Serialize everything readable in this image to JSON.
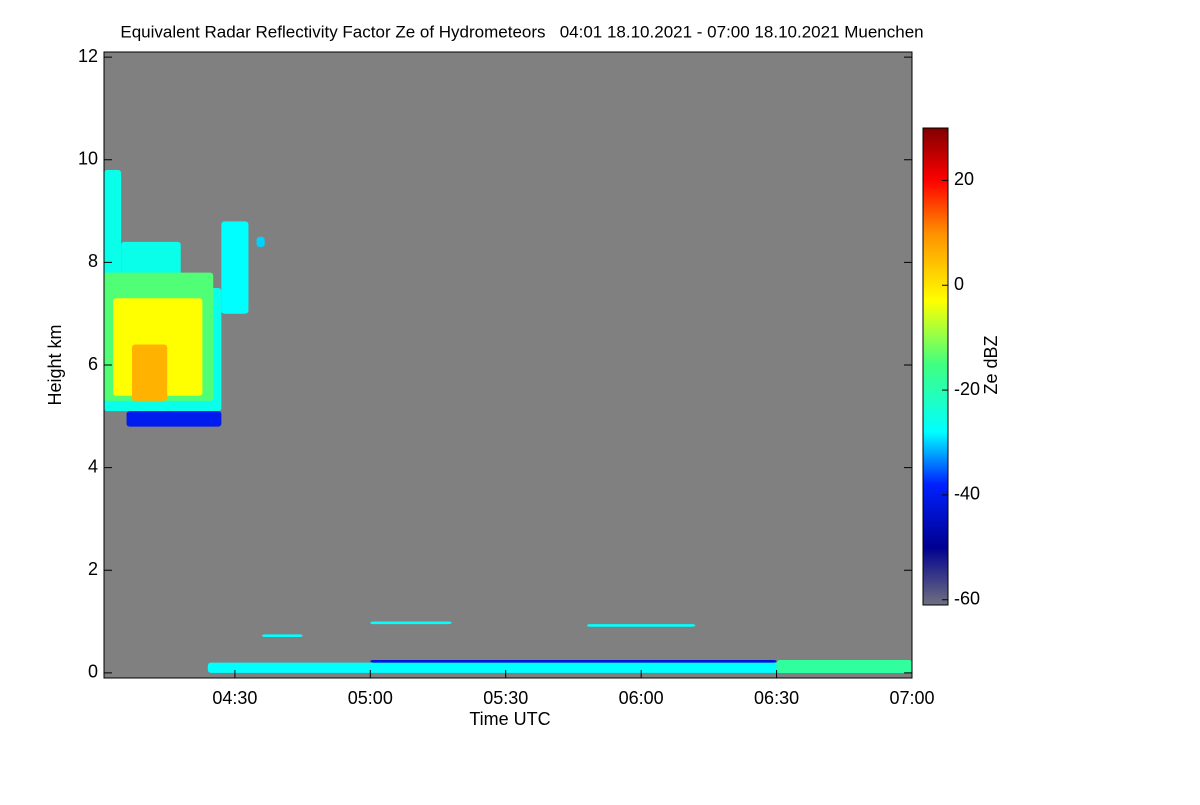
{
  "chart_data": {
    "type": "heatmap",
    "title": "Equivalent Radar Reflectivity Factor Ze of Hydrometeors   04:01 18.10.2021 - 07:00 18.10.2021 Muenchen",
    "x_label": "Time UTC",
    "y_label": "Height km",
    "colorbar_label": "Ze dBZ",
    "xlim": [
      4.0167,
      7.0
    ],
    "xticks": [
      {
        "value": 4.5,
        "label": "04:30"
      },
      {
        "value": 5.0,
        "label": "05:00"
      },
      {
        "value": 5.5,
        "label": "05:30"
      },
      {
        "value": 6.0,
        "label": "06:00"
      },
      {
        "value": 6.5,
        "label": "06:30"
      },
      {
        "value": 7.0,
        "label": "07:00"
      }
    ],
    "ylim": [
      -0.1,
      12.1
    ],
    "yticks": [
      0,
      2,
      4,
      6,
      8,
      10,
      12
    ],
    "clim": [
      -61,
      30
    ],
    "cticks": [
      -60,
      -40,
      -20,
      0,
      20
    ],
    "background": "#808080",
    "colormap": [
      {
        "value": -61,
        "color": "#707080"
      },
      {
        "value": -50,
        "color": "#000090"
      },
      {
        "value": -38,
        "color": "#0020ff"
      },
      {
        "value": -28,
        "color": "#00ffff"
      },
      {
        "value": -15,
        "color": "#40ff80"
      },
      {
        "value": -3,
        "color": "#ffff00"
      },
      {
        "value": 10,
        "color": "#ff9000"
      },
      {
        "value": 20,
        "color": "#ff0000"
      },
      {
        "value": 30,
        "color": "#800000"
      }
    ],
    "echoes": [
      {
        "t": [
          4.017,
          4.45
        ],
        "h": [
          5.1,
          7.5
        ],
        "ze": -26
      },
      {
        "t": [
          4.017,
          4.08
        ],
        "h": [
          7.5,
          9.8
        ],
        "ze": -26
      },
      {
        "t": [
          4.08,
          4.3
        ],
        "h": [
          7.5,
          8.4
        ],
        "ze": -26
      },
      {
        "t": [
          4.1,
          4.45
        ],
        "h": [
          4.8,
          5.1
        ],
        "ze": -40
      },
      {
        "t": [
          4.45,
          4.55
        ],
        "h": [
          7.0,
          8.8
        ],
        "ze": -28
      },
      {
        "t": [
          4.58,
          4.61
        ],
        "h": [
          8.3,
          8.5
        ],
        "ze": -30
      },
      {
        "t": [
          4.017,
          4.42
        ],
        "h": [
          5.3,
          7.8
        ],
        "ze": -14
      },
      {
        "t": [
          4.05,
          4.38
        ],
        "h": [
          5.4,
          7.3
        ],
        "ze": -3
      },
      {
        "t": [
          4.12,
          4.25
        ],
        "h": [
          5.3,
          6.4
        ],
        "ze": 6
      },
      {
        "t": [
          4.4,
          7.0
        ],
        "h": [
          0.0,
          0.2
        ],
        "ze": -28
      },
      {
        "t": [
          5.0,
          6.5
        ],
        "h": [
          0.2,
          0.25
        ],
        "ze": -42
      },
      {
        "t": [
          6.5,
          7.0
        ],
        "h": [
          0.0,
          0.25
        ],
        "ze": -18
      },
      {
        "t": [
          4.6,
          4.75
        ],
        "h": [
          0.7,
          0.75
        ],
        "ze": -28
      },
      {
        "t": [
          5.8,
          6.2
        ],
        "h": [
          0.9,
          0.95
        ],
        "ze": -28
      },
      {
        "t": [
          5.0,
          5.3
        ],
        "h": [
          0.95,
          1.0
        ],
        "ze": -28
      }
    ]
  }
}
